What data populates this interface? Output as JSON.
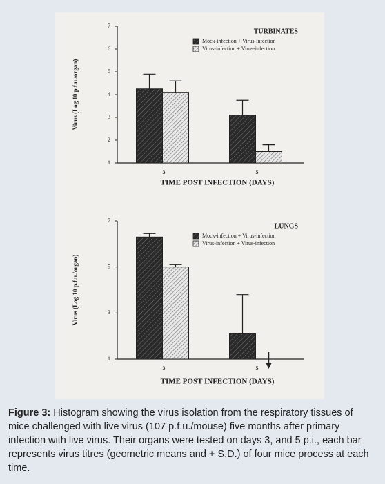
{
  "chart_data": [
    {
      "type": "bar",
      "title": "TURBINATES",
      "y_label": "Virus (Log 10 p.f.u./organ)",
      "x_label": "TIME POST INFECTION (DAYS)",
      "categories": [
        "3",
        "5"
      ],
      "series": [
        {
          "name": "Mock-infection + Virus-infection",
          "color": "#2a2a2a",
          "values": [
            4.25,
            3.1
          ],
          "errors": [
            0.65,
            0.65
          ]
        },
        {
          "name": "Virus-infection + Virus-infection",
          "color": "#b8b8b8",
          "values": [
            4.1,
            1.5
          ],
          "errors": [
            0.5,
            0.3
          ]
        }
      ],
      "ylim": [
        1,
        7
      ],
      "yticks": [
        1,
        2,
        3,
        4,
        5,
        6,
        7
      ]
    },
    {
      "type": "bar",
      "title": "LUNGS",
      "y_label": "Virus (Log 10 p.f.u./organ)",
      "x_label": "TIME POST INFECTION (DAYS)",
      "categories": [
        "3",
        "5"
      ],
      "series": [
        {
          "name": "Mock-infection + Virus-infection",
          "color": "#2a2a2a",
          "values": [
            6.3,
            2.1
          ],
          "errors": [
            0.15,
            1.7
          ]
        },
        {
          "name": "Virus-infection + Virus-infection",
          "color": "#b8b8b8",
          "values": [
            5.0,
            null
          ],
          "errors": [
            0.1,
            null
          ]
        }
      ],
      "ylim": [
        1,
        7
      ],
      "yticks": [
        1,
        3,
        5,
        7
      ]
    }
  ],
  "caption": {
    "label": "Figure 3:",
    "text": "Histogram showing the virus isolation from the respiratory tissues of mice challenged with live virus (107 p.f.u./mouse) five months after primary infection with live virus. Their organs were tested on days 3, and 5 p.i., each bar represents virus titres (geometric means and + S.D.) of four mice process at each time."
  }
}
